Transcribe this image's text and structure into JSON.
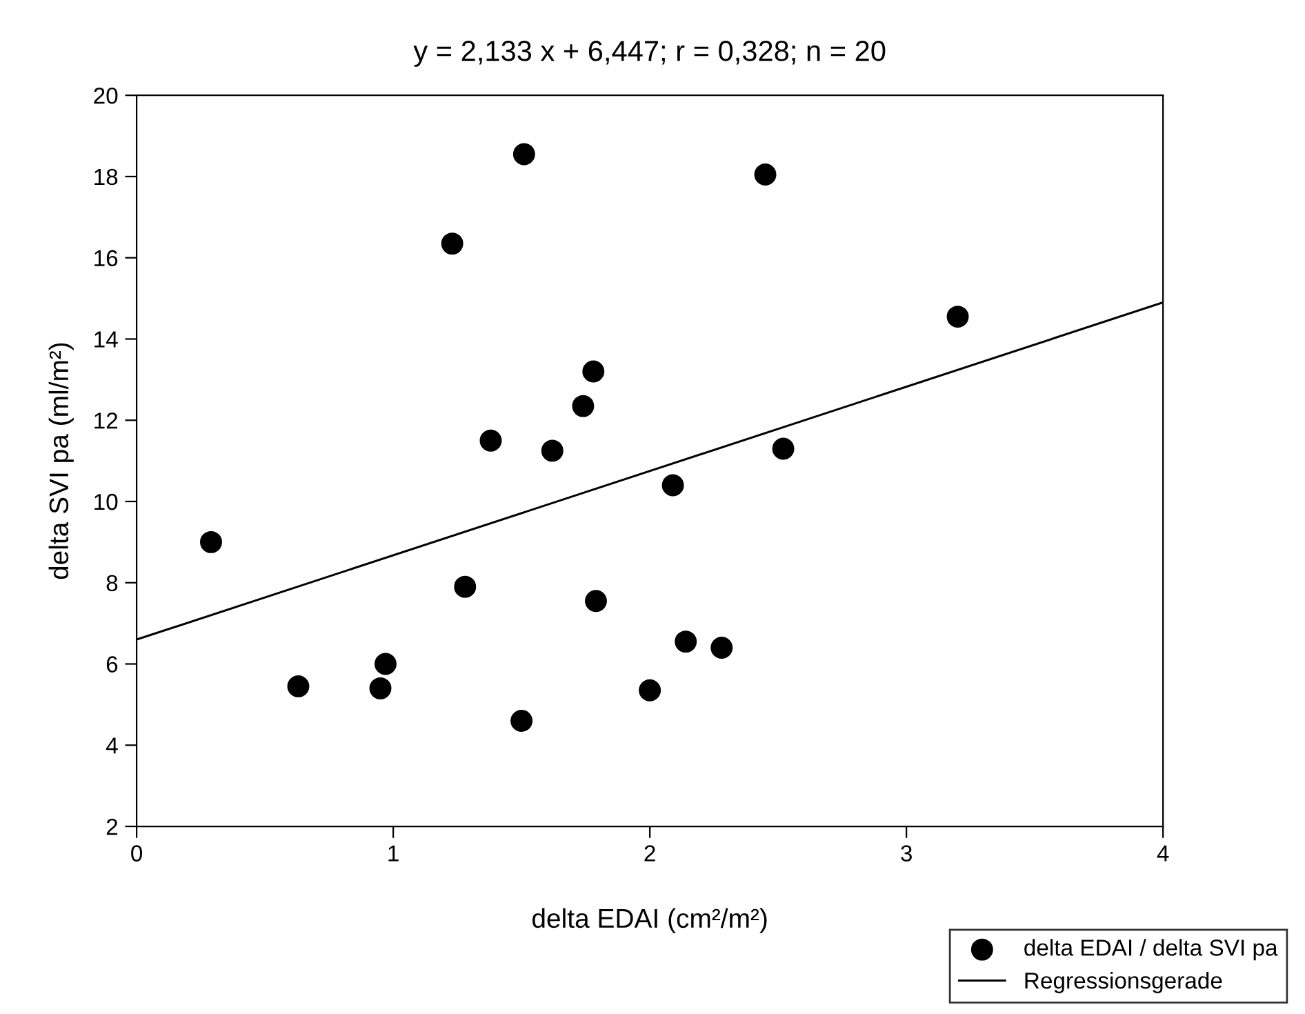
{
  "chart_data": {
    "type": "scatter",
    "title": "y = 2,133 x + 6,447; r = 0,328; n = 20",
    "xlabel": "delta EDAI (cm²/m²)",
    "ylabel": "delta SVI pa (ml/m²)",
    "series": [
      {
        "name": "delta EDAI / delta SVI pa",
        "color": "#000000",
        "marker": "circle",
        "x": [
          0.29,
          0.63,
          0.95,
          0.97,
          1.23,
          1.28,
          1.38,
          1.5,
          1.51,
          1.62,
          1.74,
          1.78,
          1.79,
          2.0,
          2.09,
          2.14,
          2.28,
          2.45,
          2.52,
          3.2
        ],
        "values": [
          9.0,
          5.45,
          5.4,
          6.0,
          16.35,
          7.9,
          11.5,
          4.6,
          18.55,
          11.25,
          12.35,
          13.2,
          7.55,
          5.35,
          10.4,
          6.55,
          6.4,
          18.05,
          11.3,
          14.55
        ]
      },
      {
        "name": "Regressionsgerade",
        "type": "line",
        "color": "#000000",
        "line_style": "solid",
        "x": [
          0,
          4
        ],
        "values": [
          6.6,
          14.9
        ]
      }
    ],
    "xlim": [
      0,
      4
    ],
    "xticks": [
      0,
      1,
      2,
      3,
      4
    ],
    "ylim": [
      2,
      20
    ],
    "yticks": [
      2,
      4,
      6,
      8,
      10,
      12,
      14,
      16,
      18,
      20
    ],
    "grid": false,
    "legend": "bottom right"
  }
}
